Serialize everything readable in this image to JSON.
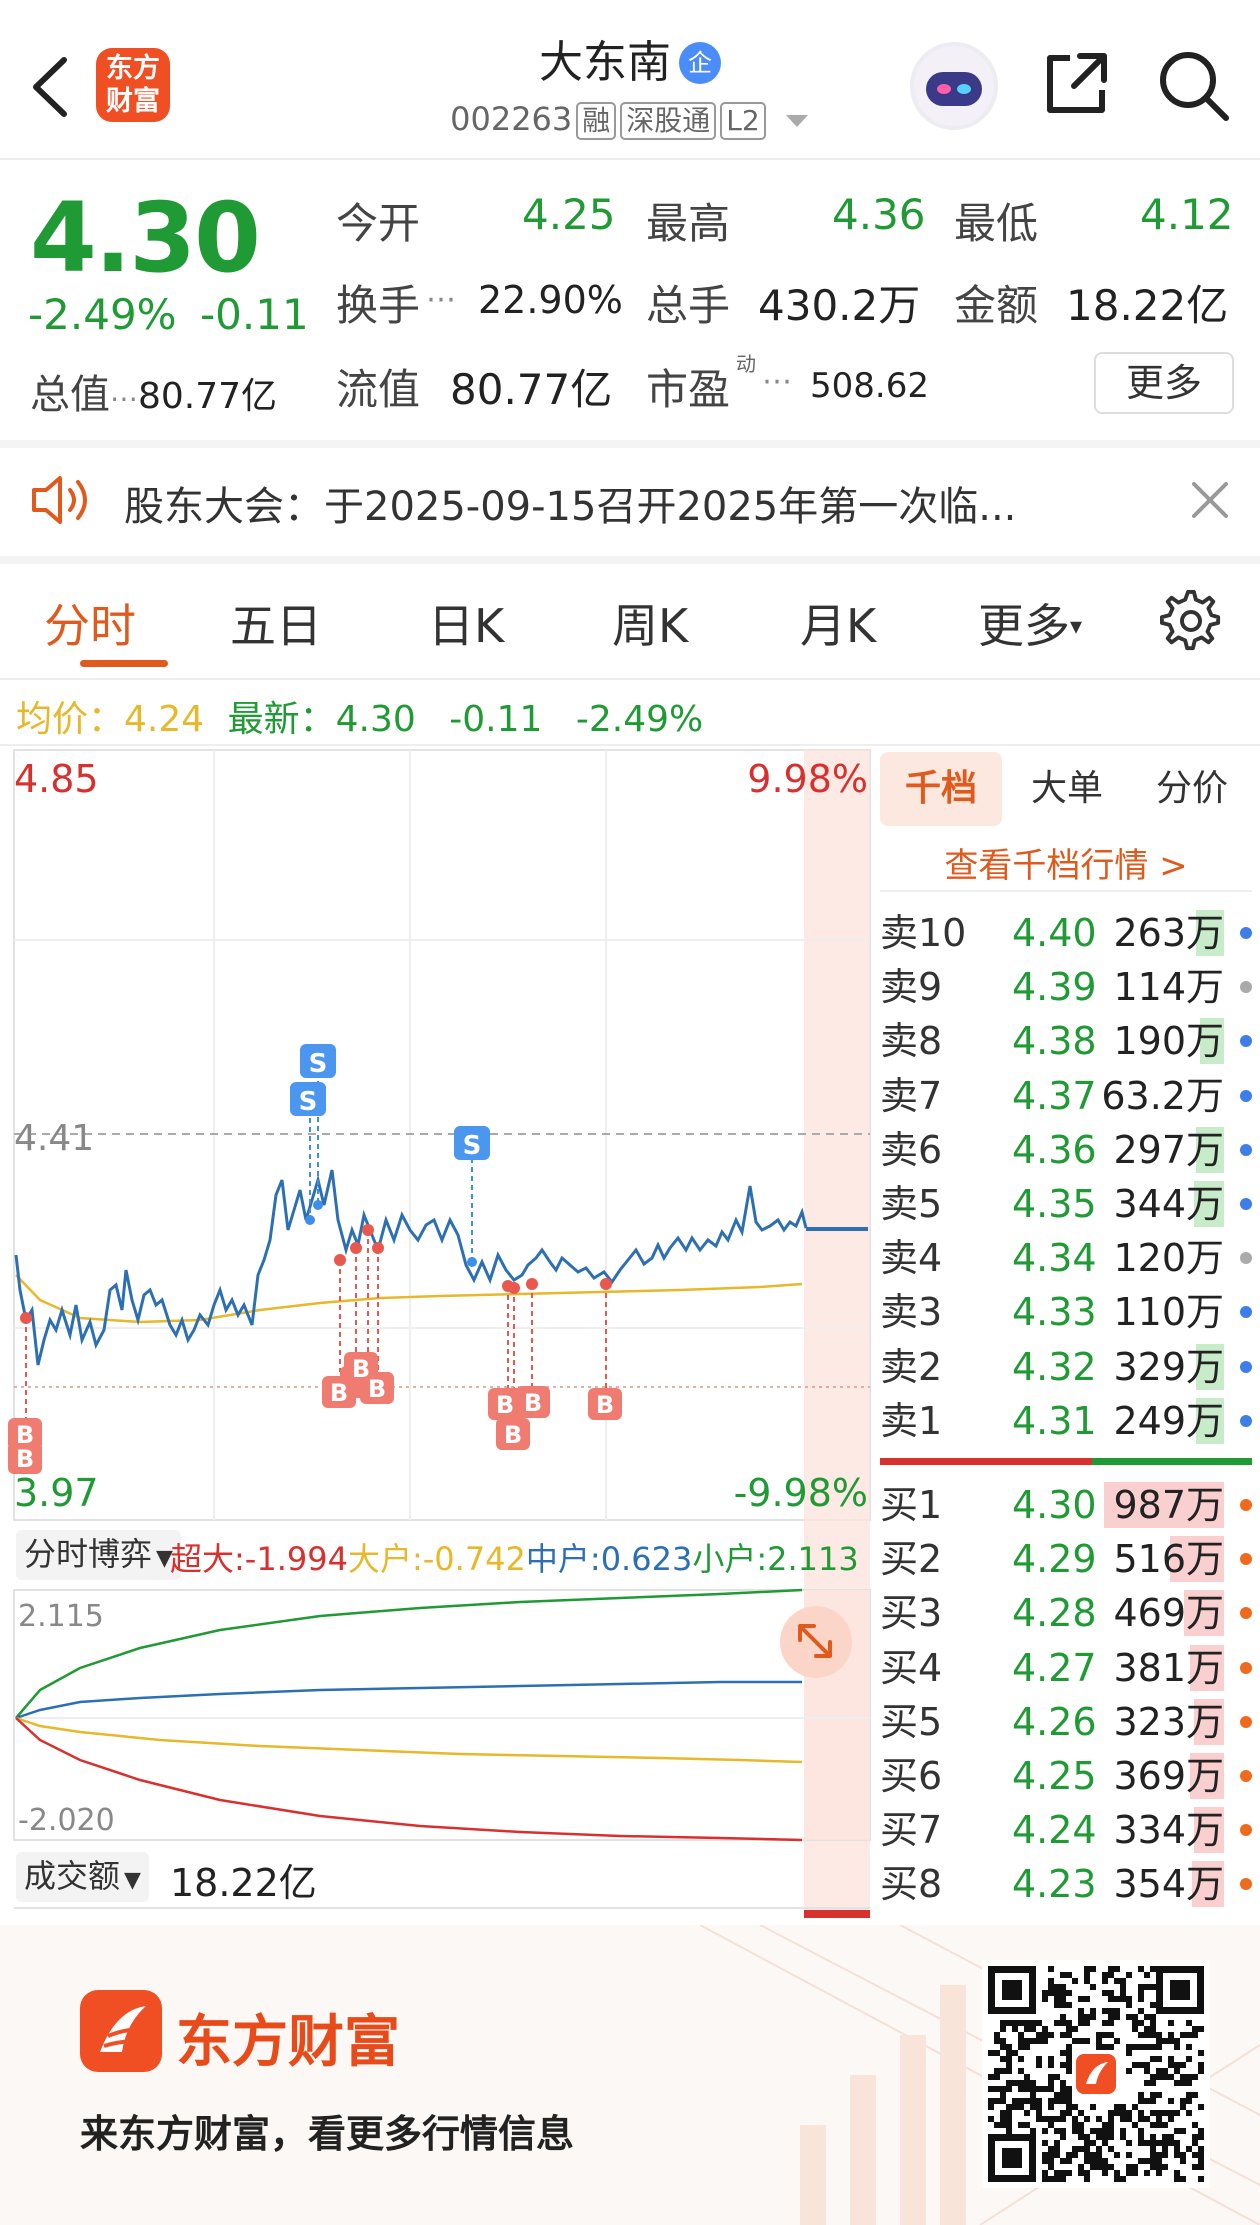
{
  "header": {
    "title": "大东南",
    "title_badge": "企",
    "code": "002263",
    "tags": [
      "融",
      "深股通",
      "L2"
    ],
    "logo_text_line1": "东方",
    "logo_text_line2": "财富"
  },
  "quote": {
    "price": "4.30",
    "change_pct": "-2.49%",
    "change": "-0.11",
    "open_label": "今开",
    "open": "4.25",
    "high_label": "最高",
    "high": "4.36",
    "low_label": "最低",
    "low": "4.12",
    "turnover_label": "换手",
    "turnover": "22.90%",
    "volume_label": "总手",
    "volume": "430.2万",
    "amount_label": "金额",
    "amount": "18.22亿",
    "mktcap_label": "总值",
    "mktcap": "80.77亿",
    "float_label": "流值",
    "float_cap": "80.77亿",
    "pe_label": "市盈",
    "pe_sup": "动",
    "pe": "508.62",
    "more_label": "更多"
  },
  "notice": {
    "text": "股东大会：于2025-09-15召开2025年第一次临..."
  },
  "tabs": [
    "分时",
    "五日",
    "日K",
    "周K",
    "月K",
    "更多"
  ],
  "avg_line": {
    "avg_label": "均价：",
    "avg": "4.24",
    "latest_label": "最新：",
    "latest": "4.30",
    "chg": "-0.11",
    "chg_pct": "-2.49%"
  },
  "chart": {
    "y_top": "4.85",
    "y_bottom": "3.97",
    "y_ref": "4.41",
    "pct_top": "9.98%",
    "pct_bottom": "-9.98%",
    "sell_marker": "S",
    "buy_marker": "B",
    "game_label": "分时博弈",
    "game_super": "超大:-1.994",
    "game_big": "大户:-0.742",
    "game_mid": "中户:0.623",
    "game_small": "小户:2.113",
    "game_top": "2.115",
    "game_bottom": "-2.020",
    "amount_label": "成交额",
    "amount_value": "18.22亿"
  },
  "orderbook": {
    "tabs": [
      "千档",
      "大单",
      "分价"
    ],
    "link": "查看千档行情 >",
    "asks": [
      {
        "name": "卖10",
        "price": "4.40",
        "vol": "263万"
      },
      {
        "name": "卖9",
        "price": "4.39",
        "vol": "114万"
      },
      {
        "name": "卖8",
        "price": "4.38",
        "vol": "190万"
      },
      {
        "name": "卖7",
        "price": "4.37",
        "vol": "63.2万"
      },
      {
        "name": "卖6",
        "price": "4.36",
        "vol": "297万"
      },
      {
        "name": "卖5",
        "price": "4.35",
        "vol": "344万"
      },
      {
        "name": "卖4",
        "price": "4.34",
        "vol": "120万"
      },
      {
        "name": "卖3",
        "price": "4.33",
        "vol": "110万"
      },
      {
        "name": "卖2",
        "price": "4.32",
        "vol": "329万"
      },
      {
        "name": "卖1",
        "price": "4.31",
        "vol": "249万"
      }
    ],
    "bids": [
      {
        "name": "买1",
        "price": "4.30",
        "vol": "987万"
      },
      {
        "name": "买2",
        "price": "4.29",
        "vol": "516万"
      },
      {
        "name": "买3",
        "price": "4.28",
        "vol": "469万"
      },
      {
        "name": "买4",
        "price": "4.27",
        "vol": "381万"
      },
      {
        "name": "买5",
        "price": "4.26",
        "vol": "323万"
      },
      {
        "name": "买6",
        "price": "4.25",
        "vol": "369万"
      },
      {
        "name": "买7",
        "price": "4.24",
        "vol": "334万"
      },
      {
        "name": "买8",
        "price": "4.23",
        "vol": "354万"
      }
    ]
  },
  "footer": {
    "brand": "东方财富",
    "slogan": "来东方财富，看更多行情信息"
  },
  "colors": {
    "up": "#d8302f",
    "down": "#1f9a34",
    "accent": "#e05a1e",
    "price_line": "#2d6fb3",
    "avg_line": "#e6b82a"
  },
  "icons": [
    "back-icon",
    "search-icon",
    "share-icon",
    "speaker-icon",
    "close-icon",
    "settings-icon",
    "expand-icon",
    "dropdown-icon"
  ]
}
